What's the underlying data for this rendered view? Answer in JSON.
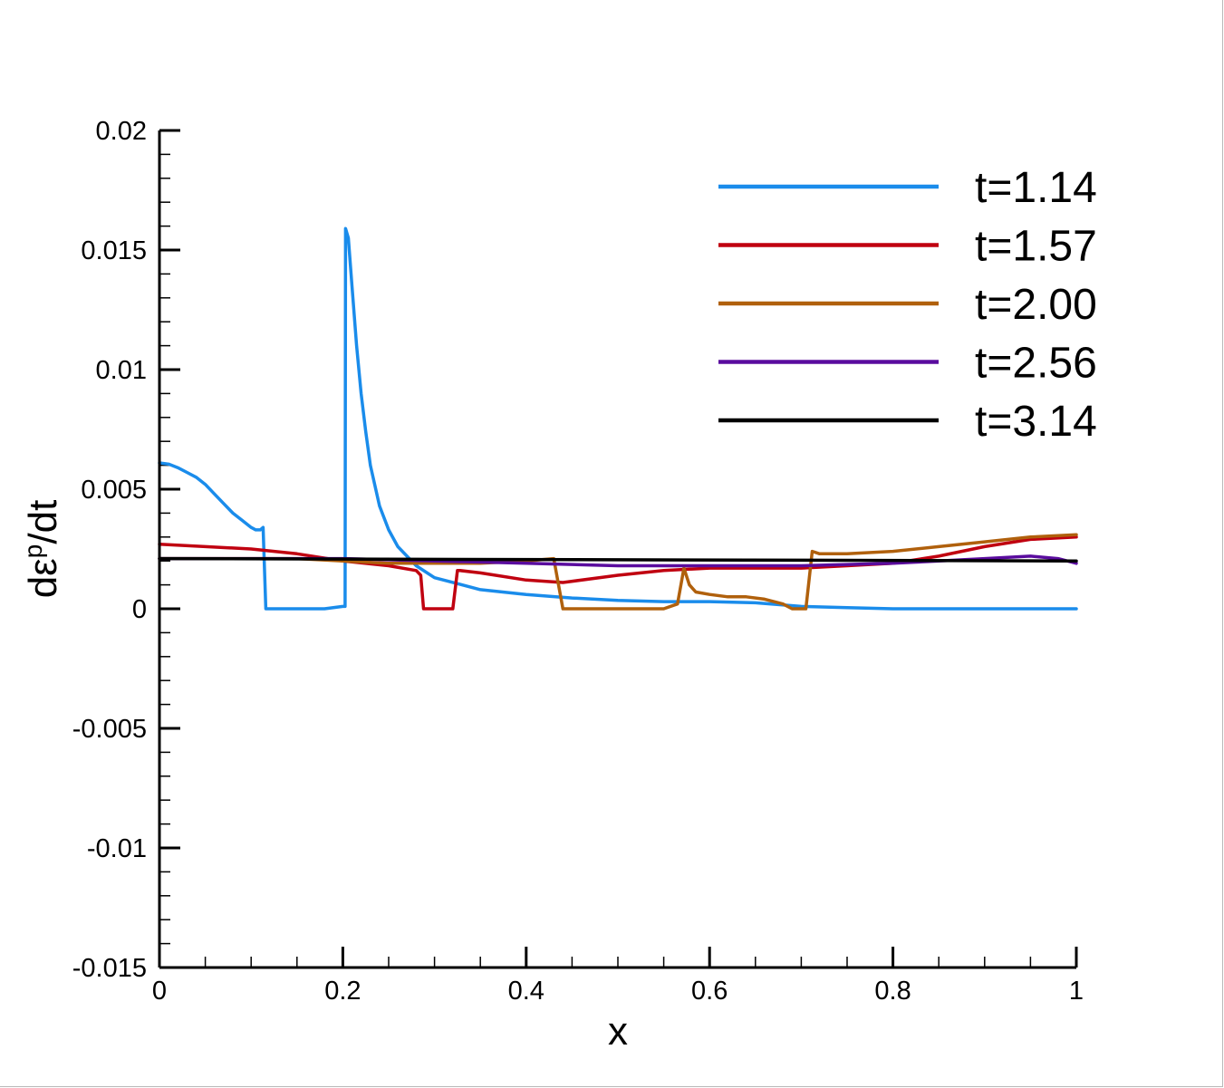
{
  "chart_data": {
    "type": "line",
    "title": "",
    "xlabel": "x",
    "ylabel_main": "dε",
    "ylabel_sup": "p",
    "ylabel_tail": "/dt",
    "xlim": [
      0,
      1
    ],
    "ylim": [
      -0.015,
      0.02
    ],
    "x_ticks": [
      0,
      0.2,
      0.4,
      0.6,
      0.8,
      1
    ],
    "x_tick_labels": [
      "0",
      "0.2",
      "0.4",
      "0.6",
      "0.8",
      "1"
    ],
    "y_ticks": [
      -0.015,
      -0.01,
      -0.005,
      0,
      0.005,
      0.01,
      0.015,
      0.02
    ],
    "y_tick_labels": [
      "-0.015",
      "-0.01",
      "-0.005",
      "0",
      "0.005",
      "0.01",
      "0.015",
      "0.02"
    ],
    "grid": false,
    "legend_position": "top-right",
    "series": [
      {
        "name": "t=1.14",
        "color": "#1a8ceb",
        "x": [
          0,
          0.01,
          0.02,
          0.03,
          0.04,
          0.05,
          0.06,
          0.07,
          0.08,
          0.09,
          0.1,
          0.105,
          0.11,
          0.113,
          0.116,
          0.12,
          0.14,
          0.16,
          0.18,
          0.2,
          0.2025,
          0.203,
          0.206,
          0.21,
          0.215,
          0.22,
          0.225,
          0.23,
          0.24,
          0.25,
          0.26,
          0.28,
          0.3,
          0.35,
          0.4,
          0.45,
          0.5,
          0.55,
          0.6,
          0.65,
          0.7,
          0.75,
          0.8,
          0.9,
          1.0
        ],
        "y": [
          0.0061,
          0.00605,
          0.0059,
          0.0057,
          0.0055,
          0.0052,
          0.0048,
          0.0044,
          0.004,
          0.0037,
          0.0034,
          0.0033,
          0.0033,
          0.0034,
          0.0,
          0.0,
          0.0,
          0.0,
          0.0,
          0.0001,
          0.0001,
          0.0159,
          0.0155,
          0.0135,
          0.011,
          0.009,
          0.0074,
          0.006,
          0.0043,
          0.0033,
          0.0026,
          0.0018,
          0.0013,
          0.0008,
          0.0006,
          0.00045,
          0.00035,
          0.0003,
          0.0003,
          0.00025,
          0.0001,
          5e-05,
          0.0,
          0.0,
          0.0
        ]
      },
      {
        "name": "t=1.57",
        "color": "#c00010",
        "x": [
          0,
          0.05,
          0.1,
          0.15,
          0.2,
          0.25,
          0.28,
          0.285,
          0.288,
          0.32,
          0.325,
          0.328,
          0.35,
          0.4,
          0.44,
          0.5,
          0.55,
          0.6,
          0.65,
          0.7,
          0.75,
          0.8,
          0.85,
          0.9,
          0.95,
          1.0
        ],
        "y": [
          0.0027,
          0.0026,
          0.0025,
          0.0023,
          0.002,
          0.0018,
          0.0016,
          0.0014,
          0.0,
          0.0,
          0.0016,
          0.0016,
          0.0015,
          0.0012,
          0.0011,
          0.0014,
          0.0016,
          0.0017,
          0.0017,
          0.0017,
          0.0018,
          0.0019,
          0.0022,
          0.0026,
          0.0029,
          0.003
        ]
      },
      {
        "name": "t=2.00",
        "color": "#b0600c",
        "x": [
          0,
          0.05,
          0.1,
          0.15,
          0.2,
          0.25,
          0.3,
          0.35,
          0.4,
          0.43,
          0.44,
          0.445,
          0.5,
          0.55,
          0.565,
          0.572,
          0.578,
          0.585,
          0.6,
          0.62,
          0.64,
          0.66,
          0.68,
          0.69,
          0.7,
          0.705,
          0.712,
          0.72,
          0.75,
          0.8,
          0.85,
          0.9,
          0.95,
          1.0
        ],
        "y": [
          0.0021,
          0.0021,
          0.0021,
          0.0021,
          0.002,
          0.0019,
          0.0019,
          0.0019,
          0.002,
          0.0021,
          0.0,
          0.0,
          0.0,
          0.0,
          0.0002,
          0.0017,
          0.001,
          0.0007,
          0.0006,
          0.0005,
          0.0005,
          0.0004,
          0.0002,
          0.0,
          0.0,
          0.0,
          0.0024,
          0.0023,
          0.0023,
          0.0024,
          0.0026,
          0.0028,
          0.003,
          0.0031
        ]
      },
      {
        "name": "t=2.56",
        "color": "#5a0c9e",
        "x": [
          0,
          0.1,
          0.2,
          0.3,
          0.4,
          0.5,
          0.6,
          0.7,
          0.8,
          0.85,
          0.9,
          0.95,
          0.98,
          1.0
        ],
        "y": [
          0.0021,
          0.0021,
          0.0021,
          0.002,
          0.0019,
          0.0018,
          0.0018,
          0.0018,
          0.0019,
          0.002,
          0.0021,
          0.0022,
          0.0021,
          0.0019
        ]
      },
      {
        "name": "t=3.14",
        "color": "#000000",
        "x": [
          0,
          1.0
        ],
        "y": [
          0.0021,
          0.002
        ]
      }
    ]
  }
}
